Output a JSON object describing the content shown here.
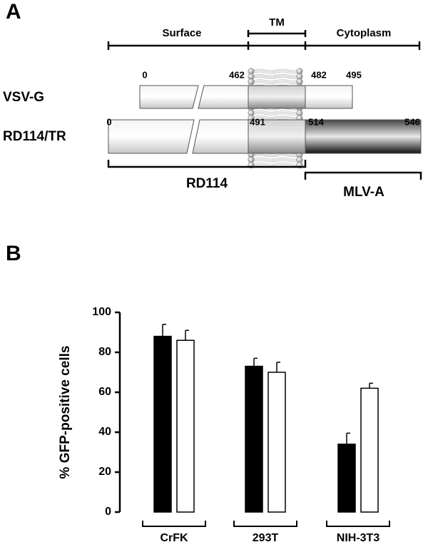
{
  "panel_a": {
    "label": "A",
    "regions": [
      "Surface",
      "TM",
      "Cytoplasm"
    ],
    "constructs": [
      {
        "name": "VSV-G",
        "positions": [
          0,
          462,
          482,
          495
        ]
      },
      {
        "name": "RD114/TR",
        "positions": [
          0,
          491,
          514,
          546
        ]
      }
    ],
    "origins": [
      "RD114",
      "MLV-A"
    ]
  },
  "chart_data": {
    "type": "bar",
    "label": "B",
    "ylabel": "% GFP-positive cells",
    "categories": [
      "CrFK",
      "293T",
      "NIH-3T3"
    ],
    "series": [
      {
        "color": "#000000",
        "values": [
          88,
          73,
          34
        ],
        "errors": [
          6,
          4,
          5.5
        ]
      },
      {
        "color": "#ffffff",
        "values": [
          86,
          70,
          62
        ],
        "errors": [
          5,
          5,
          2.5
        ]
      }
    ],
    "ylim": [
      0,
      100
    ],
    "yticks": [
      0,
      20,
      40,
      60,
      80,
      100
    ]
  }
}
